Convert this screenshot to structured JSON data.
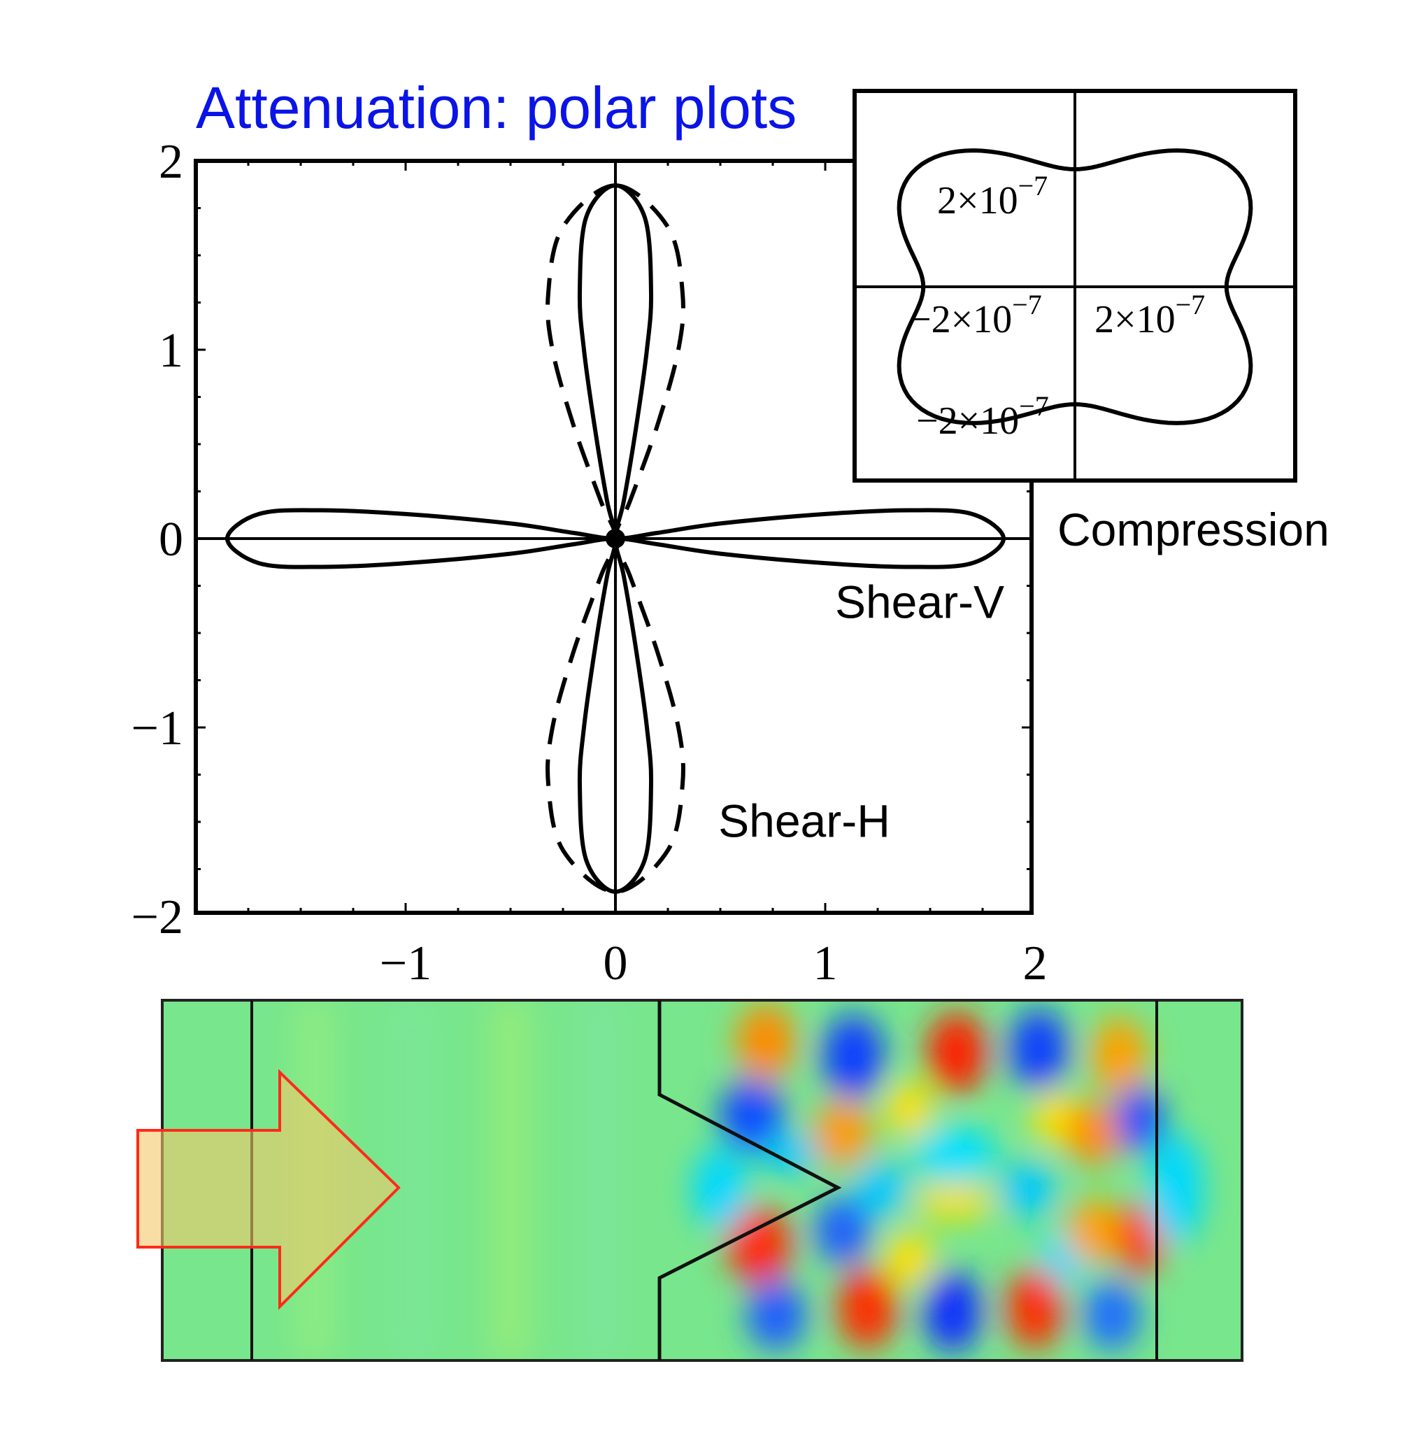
{
  "title": "Attenuation: polar plots",
  "colors": {
    "title": "#0a14e6",
    "axes": "#000000",
    "curve": "#000000",
    "arrow_fill": "#f3c869",
    "arrow_stroke": "#ff2a1a",
    "field_background": "#78e68c"
  },
  "chart_data": [
    {
      "type": "polar",
      "title": "Attenuation: polar plots",
      "xlim": [
        -2,
        2
      ],
      "ylim": [
        -2,
        2
      ],
      "xticks": [
        -1,
        0,
        1,
        2
      ],
      "yticks": [
        -2,
        -1,
        0,
        1,
        2
      ],
      "xtick_labels": [
        "−1",
        "0",
        "1",
        "2"
      ],
      "ytick_labels": [
        "−2",
        "−1",
        "0",
        "1",
        "2"
      ],
      "grid": false,
      "series": [
        {
          "name": "Shear-V",
          "style": "solid",
          "lobes": "horizontal",
          "x": [
            1.85,
            1.7,
            1.4,
            1.0,
            0.5,
            0.2,
            0.0,
            -0.2,
            -0.5,
            -1.0,
            -1.4,
            -1.7,
            -1.85
          ],
          "y": [
            0.0,
            0.13,
            0.15,
            0.13,
            0.08,
            0.03,
            0.0,
            0.03,
            0.08,
            0.13,
            0.15,
            0.13,
            0.0
          ]
        },
        {
          "name": "Shear-V",
          "style": "solid",
          "lobes": "vertical",
          "x": [
            0.0,
            0.14,
            0.17,
            0.15,
            0.1,
            0.04,
            0.0,
            0.04,
            0.1,
            0.15,
            0.17,
            0.14,
            0.0
          ],
          "y": [
            1.87,
            1.7,
            1.3,
            1.0,
            0.6,
            0.2,
            0.0,
            -0.2,
            -0.6,
            -1.0,
            -1.3,
            -1.7,
            -1.87
          ]
        },
        {
          "name": "Shear-H",
          "style": "dashed",
          "lobes": "vertical",
          "x": [
            0.0,
            0.25,
            0.32,
            0.3,
            0.2,
            0.07,
            0.0,
            0.07,
            0.2,
            0.3,
            0.32,
            0.25,
            0.0
          ],
          "y": [
            1.87,
            1.65,
            1.3,
            1.0,
            0.6,
            0.2,
            0.0,
            -0.2,
            -0.6,
            -1.0,
            -1.3,
            -1.65,
            -1.87
          ]
        }
      ],
      "annotations": [
        {
          "text": "Shear-V",
          "x": 1.45,
          "y": -0.42
        },
        {
          "text": "Shear-H",
          "x": 0.9,
          "y": -1.58
        }
      ]
    },
    {
      "type": "polar",
      "title": "",
      "inset": true,
      "series_label": "Compression",
      "xlim": [
        -3.5e-07,
        3.5e-07
      ],
      "ylim": [
        -3e-07,
        3e-07
      ],
      "tick_labels": [
        {
          "text": "2×10",
          "exp": "−7",
          "axis": "y",
          "value": 2e-07
        },
        {
          "text": "−2×10",
          "exp": "−7",
          "axis": "x",
          "value": -2e-07
        },
        {
          "text": "2×10",
          "exp": "−7",
          "axis": "x",
          "value": 2e-07
        },
        {
          "text": "−2×10",
          "exp": "−7",
          "axis": "y",
          "value": -2e-07
        }
      ],
      "shape": "four-lobed, dimples at 0° and 90°",
      "max_radius_direction_deg": [
        45,
        135,
        225,
        315
      ]
    },
    {
      "type": "heatmap",
      "title": "",
      "description_visible": false,
      "colorscale": "jet",
      "features": [
        "incident wave arrow",
        "V-notch boundary",
        "vertical boundaries"
      ]
    }
  ]
}
